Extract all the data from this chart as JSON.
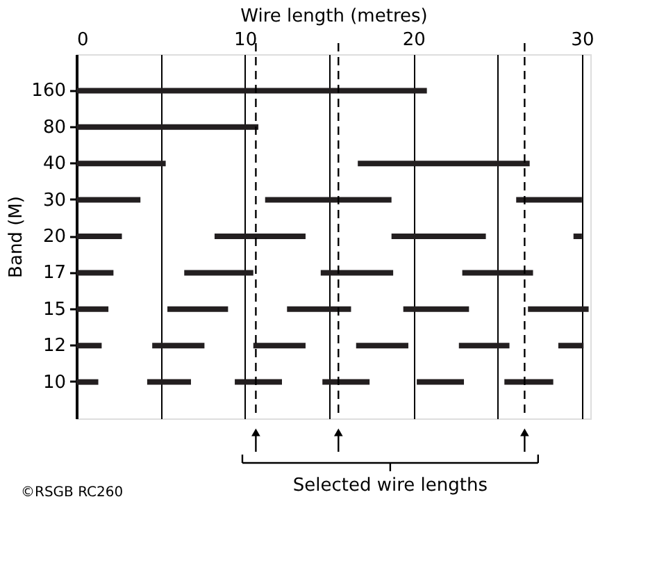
{
  "chart_data": {
    "type": "bar",
    "orientation": "horizontal",
    "xlabel": "Wire length (metres)",
    "ylabel": "Band (M)",
    "categories": [
      "160",
      "80",
      "40",
      "30",
      "20",
      "17",
      "15",
      "12",
      "10"
    ],
    "series": [
      {
        "color": "#231f20",
        "base": [
          0,
          0,
          0,
          0,
          0,
          0,
          0,
          0,
          0
        ],
        "values": [
          20.8,
          10.8,
          5.3,
          3.8,
          2.7,
          2.2,
          1.9,
          1.5,
          1.3
        ]
      },
      {
        "color": "#231f20",
        "base": [
          null,
          null,
          16.7,
          11.2,
          8.2,
          6.4,
          5.4,
          4.5,
          4.2
        ],
        "values": [
          null,
          null,
          10.2,
          7.5,
          5.4,
          4.1,
          3.6,
          3.1,
          2.6
        ]
      },
      {
        "color": "#231f20",
        "base": [
          null,
          null,
          null,
          26.1,
          18.7,
          14.5,
          12.5,
          10.5,
          9.4
        ],
        "values": [
          null,
          null,
          null,
          3.9,
          5.6,
          4.3,
          3.8,
          3.1,
          2.8
        ]
      },
      {
        "color": "#231f20",
        "base": [
          null,
          null,
          null,
          null,
          29.5,
          22.9,
          19.4,
          16.6,
          14.6
        ],
        "values": [
          null,
          null,
          null,
          null,
          0.5,
          4.2,
          3.9,
          3.1,
          2.8
        ]
      },
      {
        "color": "#231f20",
        "base": [
          null,
          null,
          null,
          null,
          null,
          null,
          26.8,
          22.7,
          20.2
        ],
        "values": [
          null,
          null,
          null,
          null,
          null,
          null,
          3.6,
          3.0,
          2.8
        ]
      },
      {
        "color": "#231f20",
        "base": [
          null,
          null,
          null,
          null,
          null,
          null,
          null,
          28.6,
          25.4
        ],
        "values": [
          null,
          null,
          null,
          null,
          null,
          null,
          null,
          1.5,
          2.9
        ]
      }
    ],
    "xlim": [
      0,
      30.5
    ],
    "xticks": [
      0,
      {
        "value": 5,
        "label": null
      },
      10,
      {
        "value": 15,
        "label": null
      },
      20,
      {
        "value": 25,
        "label": null
      },
      30
    ],
    "grid": "x",
    "ref_lines": [
      {
        "axis": "x",
        "value": 10.65,
        "line_style": "dashed"
      },
      {
        "axis": "x",
        "value": 15.55,
        "line_style": "dashed"
      },
      {
        "axis": "x",
        "value": 26.6,
        "line_style": "dashed"
      }
    ],
    "annotations": [
      "Selected wire lengths",
      "©RSGB RC260"
    ]
  }
}
